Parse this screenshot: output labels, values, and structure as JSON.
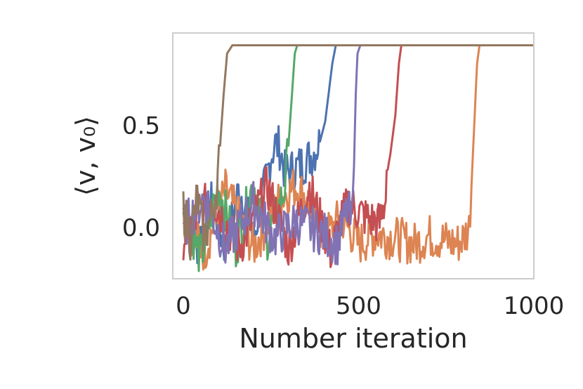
{
  "chart_data": {
    "type": "line",
    "title": "",
    "xlabel": "Number iteration",
    "ylabel": "⟨v, v₀⟩",
    "xlim": [
      -30,
      1000
    ],
    "ylim": [
      -0.25,
      0.95
    ],
    "grid": false,
    "xticks": [
      0,
      500,
      1000
    ],
    "yticks": [
      0.0,
      0.5
    ],
    "xtick_labels": [
      "0",
      "500",
      "1000"
    ],
    "ytick_labels": [
      "0.0",
      "0.5"
    ],
    "plateau": 0.89,
    "series": [
      {
        "color": "#4c72b0",
        "values": [
          [
            0,
            0.02
          ],
          [
            40,
            -0.08
          ],
          [
            80,
            0.12
          ],
          [
            120,
            -0.1
          ],
          [
            160,
            0.2
          ],
          [
            200,
            -0.05
          ],
          [
            230,
            0.18
          ],
          [
            250,
            0.35
          ],
          [
            262,
            0.41
          ],
          [
            275,
            0.39
          ],
          [
            290,
            0.27
          ],
          [
            310,
            0.28
          ],
          [
            340,
            0.31
          ],
          [
            370,
            0.36
          ],
          [
            390,
            0.42
          ],
          [
            405,
            0.52
          ],
          [
            415,
            0.66
          ],
          [
            425,
            0.8
          ],
          [
            435,
            0.89
          ],
          [
            1000,
            0.89
          ]
        ]
      },
      {
        "color": "#dd8452",
        "values": [
          [
            0,
            0.05
          ],
          [
            60,
            -0.12
          ],
          [
            120,
            0.18
          ],
          [
            200,
            -0.1
          ],
          [
            280,
            0.15
          ],
          [
            320,
            0.2
          ],
          [
            350,
            0.15
          ],
          [
            400,
            -0.05
          ],
          [
            450,
            0.05
          ],
          [
            500,
            -0.08
          ],
          [
            550,
            -0.03
          ],
          [
            600,
            -0.05
          ],
          [
            660,
            -0.08
          ],
          [
            700,
            -0.04
          ],
          [
            740,
            -0.06
          ],
          [
            780,
            -0.08
          ],
          [
            800,
            -0.05
          ],
          [
            815,
            0.0
          ],
          [
            822,
            0.2
          ],
          [
            830,
            0.5
          ],
          [
            838,
            0.8
          ],
          [
            845,
            0.89
          ],
          [
            1000,
            0.89
          ]
        ]
      },
      {
        "color": "#55a868",
        "values": [
          [
            0,
            0.1
          ],
          [
            50,
            -0.15
          ],
          [
            100,
            0.2
          ],
          [
            150,
            -0.1
          ],
          [
            200,
            0.22
          ],
          [
            240,
            -0.05
          ],
          [
            270,
            0.08
          ],
          [
            290,
            0.2
          ],
          [
            300,
            0.4
          ],
          [
            310,
            0.65
          ],
          [
            318,
            0.85
          ],
          [
            325,
            0.89
          ],
          [
            1000,
            0.89
          ]
        ]
      },
      {
        "color": "#c44e52",
        "values": [
          [
            0,
            -0.05
          ],
          [
            80,
            0.15
          ],
          [
            160,
            -0.1
          ],
          [
            240,
            0.2
          ],
          [
            300,
            -0.1
          ],
          [
            360,
            0.2
          ],
          [
            420,
            -0.12
          ],
          [
            470,
            0.12
          ],
          [
            520,
            0.05
          ],
          [
            560,
            0.02
          ],
          [
            575,
            0.12
          ],
          [
            580,
            0.28
          ],
          [
            590,
            0.35
          ],
          [
            605,
            0.55
          ],
          [
            615,
            0.8
          ],
          [
            622,
            0.89
          ],
          [
            1000,
            0.89
          ]
        ]
      },
      {
        "color": "#8172b3",
        "values": [
          [
            0,
            0.0
          ],
          [
            60,
            0.15
          ],
          [
            120,
            -0.1
          ],
          [
            200,
            0.12
          ],
          [
            260,
            -0.05
          ],
          [
            320,
            0.03
          ],
          [
            360,
            0.0
          ],
          [
            400,
            -0.03
          ],
          [
            440,
            -0.08
          ],
          [
            470,
            0.1
          ],
          [
            480,
            0.0
          ],
          [
            487,
            0.3
          ],
          [
            492,
            0.65
          ],
          [
            497,
            0.85
          ],
          [
            505,
            0.89
          ],
          [
            1000,
            0.89
          ]
        ]
      },
      {
        "color": "#937860",
        "values": [
          [
            0,
            0.1
          ],
          [
            20,
            -0.05
          ],
          [
            40,
            0.15
          ],
          [
            60,
            -0.05
          ],
          [
            80,
            0.05
          ],
          [
            95,
            0.2
          ],
          [
            105,
            0.4
          ],
          [
            115,
            0.65
          ],
          [
            125,
            0.85
          ],
          [
            140,
            0.89
          ],
          [
            1000,
            0.89
          ]
        ]
      }
    ]
  }
}
